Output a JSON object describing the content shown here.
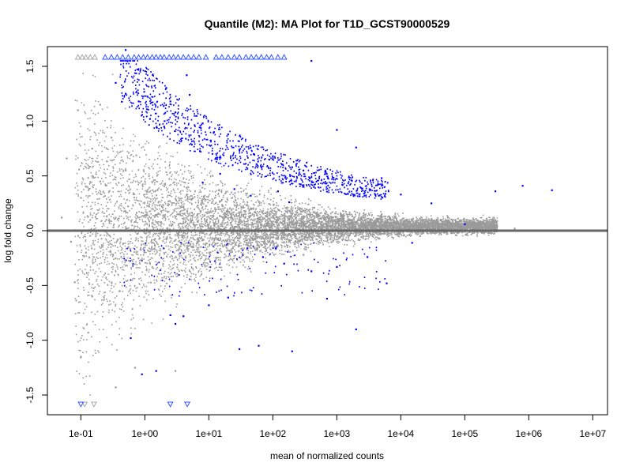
{
  "chart_data": {
    "type": "scatter",
    "title": "Quantile (M2): MA Plot for T1D_GCST90000529",
    "xlabel": "mean of normalized counts",
    "ylabel": "log fold change",
    "x_scale": "log10",
    "xlim": [
      0.03,
      17000000
    ],
    "ylim": [
      -1.68,
      1.68
    ],
    "x_ticks": [
      {
        "value": 0.1,
        "label": "1e-01"
      },
      {
        "value": 1,
        "label": "1e+00"
      },
      {
        "value": 10,
        "label": "1e+01"
      },
      {
        "value": 100,
        "label": "1e+02"
      },
      {
        "value": 1000,
        "label": "1e+03"
      },
      {
        "value": 10000,
        "label": "1e+04"
      },
      {
        "value": 100000,
        "label": "1e+05"
      },
      {
        "value": 1000000,
        "label": "1e+06"
      },
      {
        "value": 10000000,
        "label": "1e+07"
      }
    ],
    "y_ticks": [
      {
        "value": -1.5,
        "label": "-1.5"
      },
      {
        "value": -1.0,
        "label": "-1.0"
      },
      {
        "value": -0.5,
        "label": "-0.5"
      },
      {
        "value": 0.0,
        "label": "0.0"
      },
      {
        "value": 0.5,
        "label": "0.5"
      },
      {
        "value": 1.0,
        "label": "1.0"
      },
      {
        "value": 1.5,
        "label": "1.5"
      }
    ],
    "reference_line": {
      "y": 0,
      "color": "#666666"
    },
    "colors": {
      "not_significant": "#9a9a9a",
      "significant": "#0000ff",
      "highlight_orange": "#e0a050",
      "clipped_grey": "#a8a8a8",
      "clipped_blue": "#3355ff"
    },
    "series": [
      {
        "name": "",
        "color": "#9a9a9a",
        "points": [
          [
            0.06,
            0.66
          ],
          [
            0.09,
            1.1
          ],
          [
            0.1,
            0.3
          ],
          [
            0.12,
            -0.2
          ],
          [
            0.15,
            0.75
          ],
          [
            0.08,
            -0.47
          ],
          [
            0.1,
            -1.15
          ],
          [
            0.13,
            -0.93
          ],
          [
            0.2,
            1.15
          ],
          [
            0.3,
            0.85
          ],
          [
            0.35,
            -1.43
          ],
          [
            0.5,
            0.55
          ],
          [
            0.7,
            -1.25
          ],
          [
            1.2,
            -0.3
          ],
          [
            3.0,
            -1.28
          ],
          [
            0.15,
            -0.6
          ],
          [
            0.2,
            0.45
          ],
          [
            0.05,
            0.12
          ],
          [
            0.07,
            -0.1
          ],
          [
            80,
            0.14
          ],
          [
            300,
            -0.22
          ],
          [
            5000,
            0.15
          ],
          [
            20000,
            -0.05
          ],
          [
            300000,
            0.05
          ],
          [
            600000,
            0.02
          ]
        ]
      },
      {
        "name": "",
        "color": "#0000ff",
        "points": [
          [
            0.35,
            1.35
          ],
          [
            0.5,
            1.25
          ],
          [
            0.8,
            1.18
          ],
          [
            1.2,
            1.02
          ],
          [
            2.0,
            0.95
          ],
          [
            3.0,
            1.08
          ],
          [
            5.0,
            1.24
          ],
          [
            8.0,
            0.98
          ],
          [
            12.0,
            0.9
          ],
          [
            20.0,
            0.88
          ],
          [
            30.0,
            0.74
          ],
          [
            50.0,
            0.7
          ],
          [
            100,
            0.68
          ],
          [
            200,
            0.58
          ],
          [
            300,
            0.55
          ],
          [
            400,
            1.55
          ],
          [
            1000,
            0.92
          ],
          [
            2000,
            0.76
          ],
          [
            5000,
            0.48
          ],
          [
            10000,
            0.33
          ],
          [
            30000,
            0.25
          ],
          [
            100000,
            0.06
          ],
          [
            300000,
            0.36
          ],
          [
            800000,
            0.41
          ],
          [
            2300000,
            0.37
          ],
          [
            8,
            0.44
          ],
          [
            15,
            0.52
          ],
          [
            25,
            0.38
          ],
          [
            45,
            0.32
          ],
          [
            120,
            0.36
          ],
          [
            180,
            0.26
          ],
          [
            40,
            -0.16
          ],
          [
            70,
            -0.24
          ],
          [
            150,
            -0.3
          ],
          [
            400,
            -0.37
          ],
          [
            1000,
            -0.33
          ],
          [
            3000,
            -0.24
          ],
          [
            6000,
            -0.48
          ],
          [
            20,
            -0.61
          ],
          [
            30,
            -1.08
          ],
          [
            60,
            -1.05
          ],
          [
            200,
            -1.1
          ],
          [
            3,
            -0.85
          ],
          [
            4,
            -0.78
          ],
          [
            10,
            -0.68
          ],
          [
            0.9,
            -1.31
          ],
          [
            1.5,
            -1.28
          ],
          [
            2.5,
            -0.77
          ],
          [
            0.6,
            -0.98
          ],
          [
            15000,
            -0.11
          ],
          [
            2000,
            -0.9
          ],
          [
            700,
            -0.62
          ],
          [
            0.5,
            1.65
          ],
          [
            4.5,
            1.42
          ],
          [
            2.5,
            1.18
          ]
        ]
      }
    ],
    "clipped_top": {
      "y": 1.58,
      "grey_x": [
        0.09,
        0.105,
        0.12,
        0.14,
        0.165
      ],
      "blue_x": [
        0.24,
        0.3,
        0.37,
        0.45,
        0.55,
        0.68,
        0.8,
        0.95,
        1.1,
        1.3,
        1.5,
        1.75,
        2.0,
        2.4,
        2.8,
        3.3,
        4.0,
        4.8,
        5.8,
        7.0,
        9.0,
        13,
        16,
        20,
        25,
        30,
        38,
        46,
        55,
        66,
        80,
        95,
        120,
        150
      ]
    },
    "clipped_bottom": {
      "y": -1.58,
      "grey_x": [
        0.115,
        0.16
      ],
      "blue_x": [
        0.1,
        2.5,
        4.6
      ]
    }
  }
}
